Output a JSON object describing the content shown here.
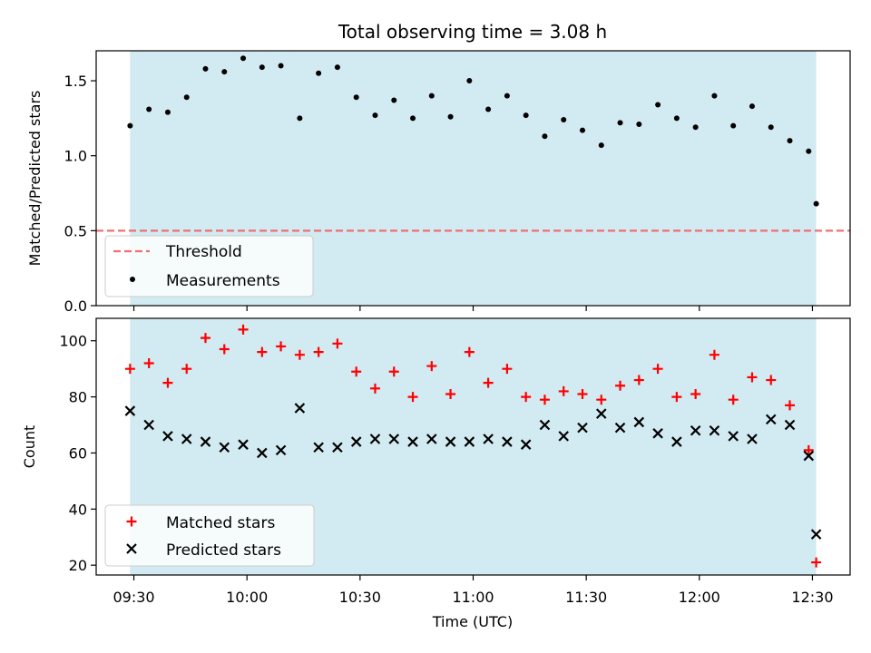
{
  "chart_data": {
    "title": "Total observing time = 3.08 h",
    "xlabel": "Time (UTC)",
    "x_tick_labels": [
      "09:30",
      "10:00",
      "10:30",
      "11:00",
      "11:30",
      "12:00",
      "12:30"
    ],
    "x_tick_values": [
      "09:30",
      "10:00",
      "10:30",
      "11:00",
      "11:30",
      "12:00",
      "12:30"
    ],
    "xlim": [
      "09:20",
      "12:40"
    ],
    "observing_window": [
      "09:29",
      "12:31"
    ],
    "shading_color": "#add8e6",
    "x": [
      "09:29",
      "09:34",
      "09:39",
      "09:44",
      "09:49",
      "09:54",
      "09:59",
      "10:04",
      "10:09",
      "10:14",
      "10:19",
      "10:24",
      "10:29",
      "10:34",
      "10:39",
      "10:44",
      "10:49",
      "10:54",
      "10:59",
      "11:04",
      "11:09",
      "11:14",
      "11:19",
      "11:24",
      "11:29",
      "11:34",
      "11:39",
      "11:44",
      "11:49",
      "11:54",
      "11:59",
      "12:04",
      "12:09",
      "12:14",
      "12:19",
      "12:24",
      "12:29",
      "12:31"
    ],
    "panels": [
      {
        "type": "scatter",
        "ylabel": "Matched/Predicted stars",
        "ylim": [
          0,
          1.7
        ],
        "y_ticks": [
          0.0,
          0.5,
          1.0,
          1.5
        ],
        "y_tick_labels": [
          "0.0",
          "0.5",
          "1.0",
          "1.5"
        ],
        "threshold": {
          "name": "Threshold",
          "value": 0.5,
          "color": "#f07070"
        },
        "legend": {
          "position": "lower left",
          "entries": [
            "Threshold",
            "Measurements"
          ]
        },
        "series": [
          {
            "name": "Measurements",
            "color": "#000000",
            "marker": "dot",
            "values": [
              1.2,
              1.31,
              1.29,
              1.39,
              1.58,
              1.56,
              1.65,
              1.59,
              1.6,
              1.25,
              1.55,
              1.59,
              1.39,
              1.27,
              1.37,
              1.25,
              1.4,
              1.26,
              1.5,
              1.31,
              1.4,
              1.27,
              1.13,
              1.24,
              1.17,
              1.07,
              1.22,
              1.21,
              1.34,
              1.25,
              1.19,
              1.4,
              1.2,
              1.33,
              1.19,
              1.1,
              1.03,
              0.68
            ]
          }
        ]
      },
      {
        "type": "scatter",
        "ylabel": "Count",
        "ylim": [
          16.5,
          108
        ],
        "y_ticks": [
          20,
          40,
          60,
          80,
          100
        ],
        "y_tick_labels": [
          "20",
          "40",
          "60",
          "80",
          "100"
        ],
        "legend": {
          "position": "lower left",
          "entries": [
            "Matched stars",
            "Predicted stars"
          ]
        },
        "series": [
          {
            "name": "Matched stars",
            "color": "#ff0000",
            "marker": "plus",
            "values": [
              90,
              92,
              85,
              90,
              101,
              97,
              104,
              96,
              98,
              95,
              96,
              99,
              89,
              83,
              89,
              80,
              91,
              81,
              96,
              85,
              90,
              80,
              79,
              82,
              81,
              79,
              84,
              86,
              90,
              80,
              81,
              95,
              79,
              87,
              86,
              77,
              61,
              21
            ]
          },
          {
            "name": "Predicted stars",
            "color": "#000000",
            "marker": "x",
            "values": [
              75,
              70,
              66,
              65,
              64,
              62,
              63,
              60,
              61,
              76,
              62,
              62,
              64,
              65,
              65,
              64,
              65,
              64,
              64,
              65,
              64,
              63,
              70,
              66,
              69,
              74,
              69,
              71,
              67,
              64,
              68,
              68,
              66,
              65,
              72,
              70,
              59,
              31
            ]
          }
        ]
      }
    ]
  }
}
